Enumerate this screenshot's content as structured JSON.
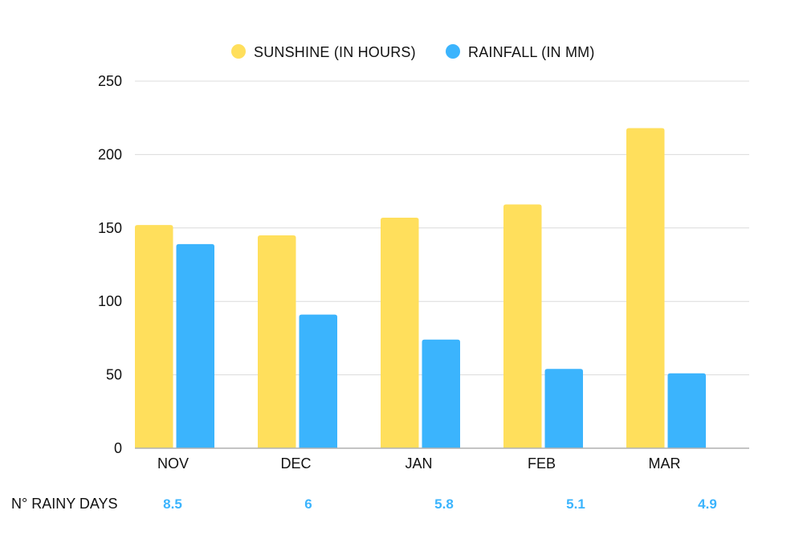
{
  "chart_data": {
    "type": "bar",
    "categories": [
      "NOV",
      "DEC",
      "JAN",
      "FEB",
      "MAR"
    ],
    "series": [
      {
        "name": "SUNSHINE (IN HOURS)",
        "values": [
          152,
          145,
          157,
          166,
          218
        ],
        "color": "#FFDF5C"
      },
      {
        "name": "RAINFALL (IN MM)",
        "values": [
          139,
          91,
          74,
          54,
          51
        ],
        "color": "#3BB4FD"
      }
    ],
    "ylim": [
      0,
      250
    ],
    "yticks": [
      0,
      50,
      100,
      150,
      200,
      250
    ],
    "grid": true,
    "legend_position": "top-center",
    "xlabel": "",
    "ylabel": "",
    "title": ""
  },
  "rainy_days": {
    "label": "N° RAINY DAYS",
    "values": [
      "8.5",
      "6",
      "5.8",
      "5.1",
      "4.9"
    ],
    "color": "#3BB4FD"
  }
}
